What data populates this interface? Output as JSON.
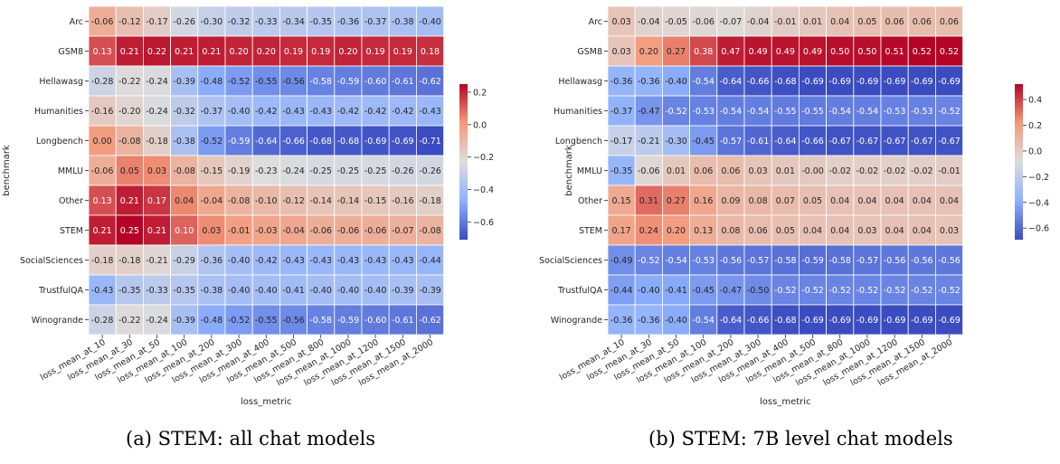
{
  "figure": {
    "captions": [
      "(a) STEM: all chat models",
      "(b) STEM: 7B level chat models"
    ]
  },
  "colors": {
    "low": "#3b4cc0",
    "mid": "#dddddd",
    "high": "#b40426",
    "cell_border": "#ffffff"
  },
  "chart_data": [
    {
      "type": "heatmap",
      "title": "",
      "xlabel": "loss_metric",
      "ylabel": "benchmark",
      "x": [
        "loss_mean_at_10",
        "loss_mean_at_30",
        "loss_mean_at_50",
        "loss_mean_at_100",
        "loss_mean_at_200",
        "loss_mean_at_300",
        "loss_mean_at_400",
        "loss_mean_at_500",
        "loss_mean_at_800",
        "loss_mean_at_1000",
        "loss_mean_at_1200",
        "loss_mean_at_1500",
        "loss_mean_at_2000"
      ],
      "y": [
        "Arc",
        "GSM8",
        "Hellawasg",
        "Humanities",
        "Longbench",
        "MMLU",
        "Other",
        "STEM",
        "SocialSciences",
        "TrustfulQA",
        "Winogrande"
      ],
      "values": [
        [
          "-0.06",
          "-0.12",
          "-0.17",
          "-0.26",
          "-0.30",
          "-0.32",
          "-0.33",
          "-0.34",
          "-0.35",
          "-0.36",
          "-0.37",
          "-0.38",
          "-0.40"
        ],
        [
          "0.13",
          "0.21",
          "0.22",
          "0.21",
          "0.21",
          "0.20",
          "0.20",
          "0.19",
          "0.19",
          "0.20",
          "0.19",
          "0.19",
          "0.18"
        ],
        [
          "-0.28",
          "-0.22",
          "-0.24",
          "-0.39",
          "-0.48",
          "-0.52",
          "-0.55",
          "-0.56",
          "-0.58",
          "-0.59",
          "-0.60",
          "-0.61",
          "-0.62"
        ],
        [
          "-0.16",
          "-0.20",
          "-0.24",
          "-0.32",
          "-0.37",
          "-0.40",
          "-0.42",
          "-0.43",
          "-0.43",
          "-0.42",
          "-0.42",
          "-0.42",
          "-0.43"
        ],
        [
          "0.00",
          "-0.08",
          "-0.18",
          "-0.38",
          "-0.52",
          "-0.59",
          "-0.64",
          "-0.66",
          "-0.68",
          "-0.68",
          "-0.69",
          "-0.69",
          "-0.71"
        ],
        [
          "-0.06",
          "0.05",
          "0.03",
          "-0.08",
          "-0.15",
          "-0.19",
          "-0.23",
          "-0.24",
          "-0.25",
          "-0.25",
          "-0.25",
          "-0.26",
          "-0.26"
        ],
        [
          "0.13",
          "0.21",
          "0.17",
          "0.04",
          "-0.04",
          "-0.08",
          "-0.10",
          "-0.12",
          "-0.14",
          "-0.14",
          "-0.15",
          "-0.16",
          "-0.18"
        ],
        [
          "0.21",
          "0.25",
          "0.21",
          "0.10",
          "0.03",
          "-0.01",
          "-0.03",
          "-0.04",
          "-0.06",
          "-0.06",
          "-0.06",
          "-0.07",
          "-0.08"
        ],
        [
          "-0.18",
          "-0.18",
          "-0.21",
          "-0.29",
          "-0.36",
          "-0.40",
          "-0.42",
          "-0.43",
          "-0.43",
          "-0.43",
          "-0.43",
          "-0.43",
          "-0.44"
        ],
        [
          "-0.43",
          "-0.35",
          "-0.33",
          "-0.35",
          "-0.38",
          "-0.40",
          "-0.40",
          "-0.41",
          "-0.40",
          "-0.40",
          "-0.40",
          "-0.39",
          "-0.39"
        ],
        [
          "-0.28",
          "-0.22",
          "-0.24",
          "-0.39",
          "-0.48",
          "-0.52",
          "-0.55",
          "-0.56",
          "-0.58",
          "-0.59",
          "-0.60",
          "-0.61",
          "-0.62"
        ]
      ],
      "colorbar": {
        "vmin": -0.71,
        "vmax": 0.25,
        "ticks": [
          0.2,
          0.0,
          -0.2,
          -0.4,
          -0.6
        ],
        "tick_labels": [
          "0.2",
          "0.0",
          "−0.2",
          "−0.4",
          "−0.6"
        ]
      }
    },
    {
      "type": "heatmap",
      "title": "",
      "xlabel": "loss_metric",
      "ylabel": "benchmark",
      "x": [
        "loss_mean_at_10",
        "loss_mean_at_30",
        "loss_mean_at_50",
        "loss_mean_at_100",
        "loss_mean_at_200",
        "loss_mean_at_300",
        "loss_mean_at_400",
        "loss_mean_at_500",
        "loss_mean_at_800",
        "loss_mean_at_1000",
        "loss_mean_at_1200",
        "loss_mean_at_1500",
        "loss_mean_at_2000"
      ],
      "y": [
        "Arc",
        "GSM8",
        "Hellawasg",
        "Humanities",
        "Longbench",
        "MMLU",
        "Other",
        "STEM",
        "SocialSciences",
        "TrustfulQA",
        "Winogrande"
      ],
      "values": [
        [
          "0.03",
          "-0.04",
          "-0.05",
          "-0.06",
          "-0.07",
          "-0.04",
          "-0.01",
          "0.01",
          "0.04",
          "0.05",
          "0.06",
          "0.06",
          "0.06"
        ],
        [
          "0.03",
          "0.20",
          "0.27",
          "0.38",
          "0.47",
          "0.49",
          "0.49",
          "0.49",
          "0.50",
          "0.50",
          "0.51",
          "0.52",
          "0.52"
        ],
        [
          "-0.36",
          "-0.36",
          "-0.40",
          "-0.54",
          "-0.64",
          "-0.66",
          "-0.68",
          "-0.69",
          "-0.69",
          "-0.69",
          "-0.69",
          "-0.69",
          "-0.69"
        ],
        [
          "-0.37",
          "-0.47",
          "-0.52",
          "-0.53",
          "-0.54",
          "-0.54",
          "-0.55",
          "-0.55",
          "-0.54",
          "-0.54",
          "-0.53",
          "-0.53",
          "-0.52"
        ],
        [
          "-0.17",
          "-0.21",
          "-0.30",
          "-0.45",
          "-0.57",
          "-0.61",
          "-0.64",
          "-0.66",
          "-0.67",
          "-0.67",
          "-0.67",
          "-0.67",
          "-0.67"
        ],
        [
          "-0.35",
          "-0.06",
          "0.01",
          "0.06",
          "0.06",
          "0.03",
          "0.01",
          "-0.00",
          "-0.02",
          "-0.02",
          "-0.02",
          "-0.02",
          "-0.01"
        ],
        [
          "0.15",
          "0.31",
          "0.27",
          "0.16",
          "0.09",
          "0.08",
          "0.07",
          "0.05",
          "0.04",
          "0.04",
          "0.04",
          "0.04",
          "0.04"
        ],
        [
          "0.17",
          "0.24",
          "0.20",
          "0.13",
          "0.08",
          "0.06",
          "0.05",
          "0.04",
          "0.04",
          "0.03",
          "0.04",
          "0.04",
          "0.03"
        ],
        [
          "-0.49",
          "-0.52",
          "-0.54",
          "-0.53",
          "-0.56",
          "-0.57",
          "-0.58",
          "-0.59",
          "-0.58",
          "-0.57",
          "-0.56",
          "-0.56",
          "-0.56"
        ],
        [
          "-0.44",
          "-0.40",
          "-0.41",
          "-0.45",
          "-0.47",
          "-0.50",
          "-0.52",
          "-0.52",
          "-0.52",
          "-0.52",
          "-0.52",
          "-0.52",
          "-0.52"
        ],
        [
          "-0.36",
          "-0.36",
          "-0.40",
          "-0.54",
          "-0.64",
          "-0.66",
          "-0.68",
          "-0.69",
          "-0.69",
          "-0.69",
          "-0.69",
          "-0.69",
          "-0.69"
        ]
      ],
      "colorbar": {
        "vmin": -0.69,
        "vmax": 0.52,
        "ticks": [
          0.4,
          0.2,
          0.0,
          -0.2,
          -0.4,
          -0.6
        ],
        "tick_labels": [
          "0.4",
          "0.2",
          "0.0",
          "−0.2",
          "−0.4",
          "−0.6"
        ]
      }
    }
  ]
}
